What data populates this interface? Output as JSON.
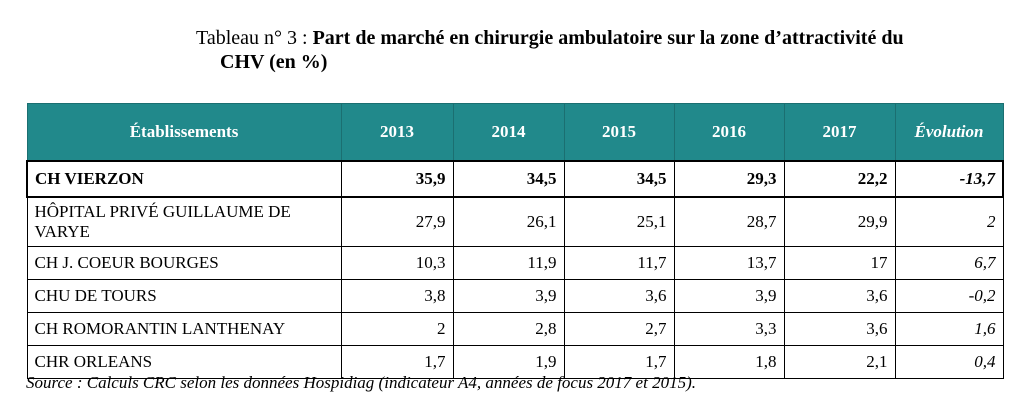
{
  "caption": {
    "prefix": "Tableau n° 3 : ",
    "title_line1": "Part de marché en chirurgie ambulatoire sur la zone d’attractivité du",
    "title_line2": "CHV (en %)"
  },
  "table": {
    "headers": [
      "Établissements",
      "2013",
      "2014",
      "2015",
      "2016",
      "2017",
      "Évolution"
    ],
    "rows": [
      {
        "name": "CH VIERZON",
        "v2013": "35,9",
        "v2014": "34,5",
        "v2015": "34,5",
        "v2016": "29,3",
        "v2017": "22,2",
        "evolution": "-13,7"
      },
      {
        "name": "HÔPITAL PRIVÉ GUILLAUME DE VARYE",
        "v2013": "27,9",
        "v2014": "26,1",
        "v2015": "25,1",
        "v2016": "28,7",
        "v2017": "29,9",
        "evolution": "2"
      },
      {
        "name": "CH J. COEUR BOURGES",
        "v2013": "10,3",
        "v2014": "11,9",
        "v2015": "11,7",
        "v2016": "13,7",
        "v2017": "17",
        "evolution": "6,7"
      },
      {
        "name": "CHU DE TOURS",
        "v2013": "3,8",
        "v2014": "3,9",
        "v2015": "3,6",
        "v2016": "3,9",
        "v2017": "3,6",
        "evolution": "-0,2"
      },
      {
        "name": "CH ROMORANTIN LANTHENAY",
        "v2013": "2",
        "v2014": "2,8",
        "v2015": "2,7",
        "v2016": "3,3",
        "v2017": "3,6",
        "evolution": "1,6"
      },
      {
        "name": "CHR ORLEANS",
        "v2013": "1,7",
        "v2014": "1,9",
        "v2015": "1,7",
        "v2016": "1,8",
        "v2017": "2,1",
        "evolution": "0,4"
      }
    ]
  },
  "source": "Source : Calculs CRC selon les données Hospidiag (indicateur A4, années de focus 2017 et 2015)."
}
